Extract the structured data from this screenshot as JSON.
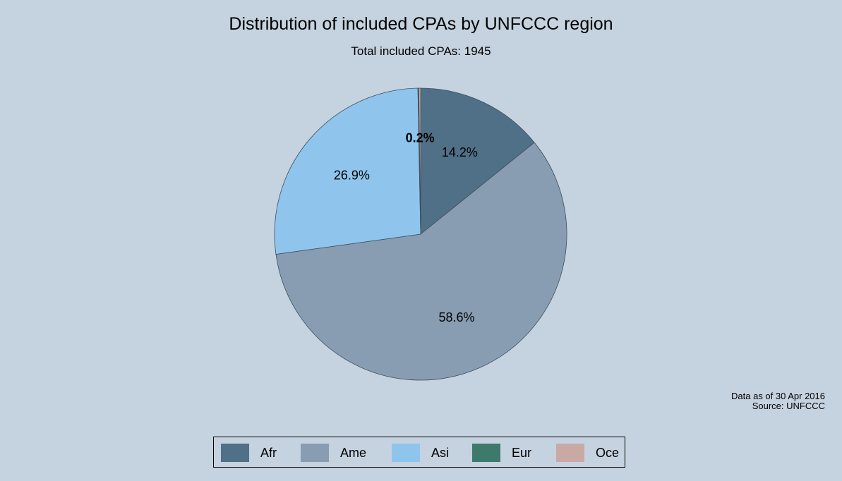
{
  "chart_data": {
    "type": "pie",
    "title": "Distribution of included CPAs by UNFCCC region",
    "subtitle": "Total included CPAs: 1945",
    "slices": [
      {
        "name": "Afr",
        "value": 14.2,
        "label": "14.2%",
        "color": "#4f7087"
      },
      {
        "name": "Ame",
        "value": 58.6,
        "label": "58.6%",
        "color": "#889db2"
      },
      {
        "name": "Asi",
        "value": 26.9,
        "label": "26.9%",
        "color": "#8fc5ec"
      },
      {
        "name": "Eur",
        "value": 0.1,
        "label": "",
        "color": "#3d7a6c"
      },
      {
        "name": "Oce",
        "value": 0.2,
        "label": "0.2%",
        "color": "#caa9a5"
      }
    ],
    "start_angle": "12 o'clock",
    "direction": "clockwise",
    "legend_placement": "bottom",
    "notes": [
      "Data as of 30 Apr 2016",
      "Source: UNFCCC"
    ]
  }
}
